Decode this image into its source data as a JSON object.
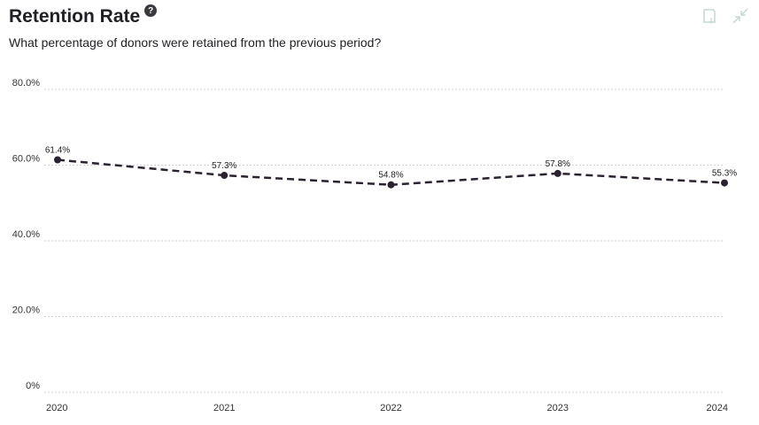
{
  "header": {
    "title": "Retention Rate",
    "help_icon": "question-circle-icon",
    "subtitle": "What percentage of donors were retained from the previous period?"
  },
  "toolbar": {
    "icons": [
      "download-icon",
      "collapse-icon"
    ],
    "icon_color": "#c5d8d0"
  },
  "chart_data": {
    "type": "line",
    "categories": [
      "2020",
      "2021",
      "2022",
      "2023",
      "2024"
    ],
    "values": [
      61.4,
      57.3,
      54.8,
      57.8,
      55.3
    ],
    "data_labels": [
      "61.4%",
      "57.3%",
      "54.8%",
      "57.8%",
      "55.3%"
    ],
    "ylim": [
      0,
      80
    ],
    "yticks": [
      0,
      20,
      40,
      60,
      80
    ],
    "ytick_labels": [
      "0%",
      "20.0%",
      "40.0%",
      "60.0%",
      "80.0%"
    ],
    "grid": true,
    "line_style": "dashed",
    "line_color": "#2a2230"
  }
}
